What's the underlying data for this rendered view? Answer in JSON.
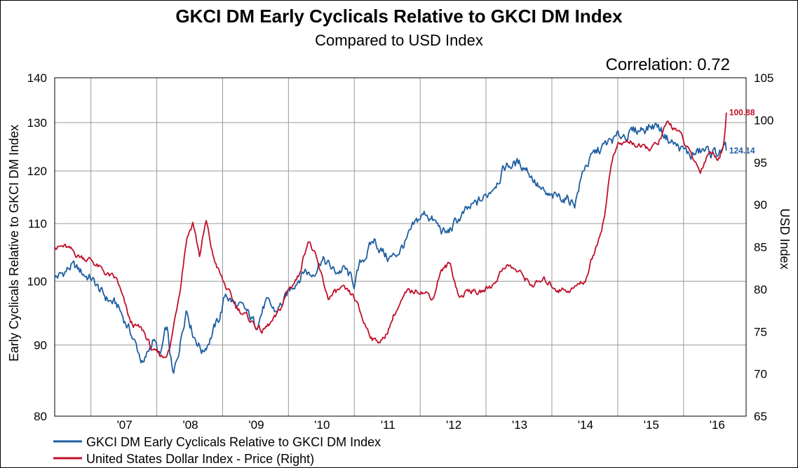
{
  "chart_data": {
    "type": "line",
    "title": "GKCI DM Early Cyclicals Relative to GKCI DM Index",
    "subtitle": "Compared to USD Index",
    "annotation": "Correlation: 0.72",
    "ylabel_left": "Early Cyclicals Relative to GKCI DM Index",
    "ylabel_right": "USD Index",
    "y_left_scale": "log",
    "ylim_left": [
      80,
      140
    ],
    "yticks_left": [
      80,
      90,
      100,
      110,
      120,
      130,
      140
    ],
    "ylim_right": [
      65,
      105
    ],
    "yticks_right": [
      65,
      70,
      75,
      80,
      85,
      90,
      95,
      100,
      105
    ],
    "xlim": [
      2006.45,
      2016.95
    ],
    "xtick_positions": [
      2007.0,
      2008.0,
      2009.0,
      2010.0,
      2011.0,
      2012.0,
      2013.0,
      2014.0,
      2015.0,
      2016.0
    ],
    "xtick_labels": [
      "'07",
      "'08",
      "'09",
      "'10",
      "'11",
      "'12",
      "'13",
      "'14",
      "'15",
      "'16"
    ],
    "grid": true,
    "legend_position": "bottom-left",
    "series": [
      {
        "name": "GKCI DM Early Cyclicals Relative to GKCI DM Index",
        "axis": "left",
        "color": "#1f5fa0",
        "end_label": "124.14",
        "x": [
          2006.45,
          2006.55,
          2006.7,
          2006.85,
          2007.0,
          2007.2,
          2007.4,
          2007.6,
          2007.8,
          2007.95,
          2008.05,
          2008.15,
          2008.25,
          2008.35,
          2008.45,
          2008.55,
          2008.7,
          2008.8,
          2008.95,
          2009.05,
          2009.2,
          2009.35,
          2009.5,
          2009.65,
          2009.8,
          2009.95,
          2010.1,
          2010.25,
          2010.35,
          2010.5,
          2010.7,
          2010.85,
          2011.0,
          2011.1,
          2011.3,
          2011.5,
          2011.6,
          2011.8,
          2012.0,
          2012.1,
          2012.3,
          2012.4,
          2012.6,
          2012.8,
          2013.0,
          2013.15,
          2013.3,
          2013.45,
          2013.6,
          2013.75,
          2013.9,
          2014.0,
          2014.15,
          2014.35,
          2014.5,
          2014.7,
          2014.9,
          2015.1,
          2015.25,
          2015.4,
          2015.6,
          2015.75,
          2015.9,
          2016.1,
          2016.3,
          2016.5,
          2016.6,
          2016.65
        ],
        "values": [
          100.5,
          101.0,
          102.5,
          101.5,
          100.5,
          97.5,
          96.0,
          92.0,
          87.0,
          91.0,
          88.0,
          92.5,
          85.0,
          90.0,
          96.0,
          92.0,
          89.0,
          91.0,
          94.0,
          98.0,
          96.0,
          95.0,
          93.0,
          96.5,
          95.0,
          97.0,
          100.0,
          102.0,
          101.0,
          104.0,
          101.5,
          102.0,
          99.5,
          103.0,
          107.0,
          104.0,
          104.0,
          107.0,
          111.0,
          112.0,
          109.0,
          108.0,
          111.0,
          113.0,
          115.0,
          118.0,
          121.0,
          121.5,
          121.0,
          118.0,
          115.0,
          114.5,
          115.0,
          114.0,
          121.0,
          124.0,
          126.0,
          127.5,
          128.0,
          129.0,
          129.5,
          127.0,
          125.0,
          123.0,
          124.0,
          123.5,
          124.0,
          124.14
        ]
      },
      {
        "name": "United States Dollar Index - Price  (Right)",
        "axis": "right",
        "color": "#c0102a",
        "end_label": "100.88",
        "x": [
          2006.45,
          2006.6,
          2006.8,
          2007.0,
          2007.2,
          2007.4,
          2007.6,
          2007.8,
          2007.95,
          2008.1,
          2008.2,
          2008.35,
          2008.45,
          2008.55,
          2008.65,
          2008.75,
          2008.85,
          2009.0,
          2009.2,
          2009.4,
          2009.6,
          2009.8,
          2009.9,
          2010.0,
          2010.15,
          2010.3,
          2010.4,
          2010.6,
          2010.8,
          2011.0,
          2011.15,
          2011.3,
          2011.45,
          2011.6,
          2011.8,
          2012.0,
          2012.2,
          2012.3,
          2012.45,
          2012.6,
          2012.75,
          2012.9,
          2013.1,
          2013.3,
          2013.5,
          2013.7,
          2013.9,
          2014.1,
          2014.3,
          2014.5,
          2014.65,
          2014.8,
          2014.9,
          2015.0,
          2015.2,
          2015.4,
          2015.6,
          2015.75,
          2015.9,
          2016.1,
          2016.25,
          2016.4,
          2016.5,
          2016.6,
          2016.65
        ],
        "values": [
          85.0,
          85.0,
          84.0,
          83.5,
          82.0,
          81.0,
          76.0,
          75.0,
          72.5,
          72.0,
          73.0,
          80.0,
          86.0,
          88.0,
          84.0,
          88.0,
          84.0,
          81.0,
          78.0,
          76.5,
          75.0,
          76.5,
          78.0,
          80.0,
          81.5,
          86.0,
          84.0,
          79.0,
          80.0,
          79.0,
          76.0,
          74.0,
          74.0,
          77.0,
          79.5,
          80.0,
          79.0,
          82.0,
          83.0,
          79.0,
          80.0,
          79.5,
          80.5,
          83.0,
          82.0,
          80.5,
          81.0,
          80.0,
          80.0,
          81.0,
          84.5,
          88.5,
          95.0,
          97.0,
          97.5,
          96.5,
          97.0,
          99.5,
          99.0,
          96.0,
          94.0,
          96.5,
          95.5,
          96.5,
          100.88
        ]
      }
    ]
  }
}
